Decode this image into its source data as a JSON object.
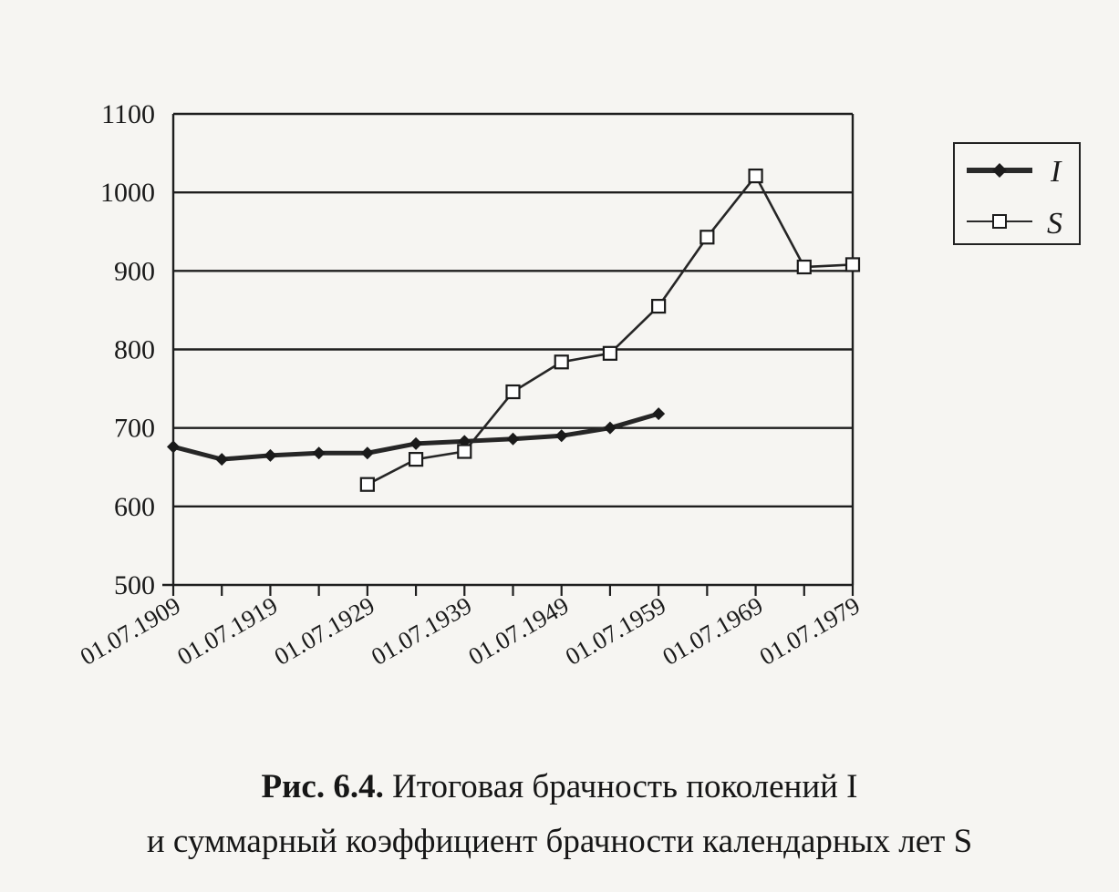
{
  "chart_data": {
    "type": "line",
    "title": "",
    "xlabel": "",
    "ylabel": "",
    "ylim": [
      500,
      1100
    ],
    "yticks": [
      "1100",
      "1000",
      "900",
      "800",
      "700",
      "600",
      "500"
    ],
    "xticks": [
      "01.07.1909",
      "01.07.1919",
      "01.07.1929",
      "01.07.1939",
      "01.07.1949",
      "01.07.1959",
      "01.07.1969",
      "01.07.1979"
    ],
    "grid": true,
    "legend_position": "right",
    "x": [
      1909,
      1914,
      1919,
      1924,
      1929,
      1934,
      1939,
      1944,
      1949,
      1954,
      1959,
      1964,
      1969,
      1974,
      1979
    ],
    "series": [
      {
        "name": "I",
        "marker": "diamond",
        "color": "#262626",
        "values": [
          676,
          660,
          665,
          668,
          668,
          680,
          683,
          686,
          690,
          700,
          718,
          null,
          null,
          null,
          null
        ]
      },
      {
        "name": "S",
        "marker": "square",
        "color": "#262626",
        "values": [
          null,
          null,
          null,
          null,
          628,
          660,
          670,
          746,
          784,
          795,
          855,
          943,
          1021,
          905,
          908
        ]
      }
    ]
  },
  "caption": {
    "figure_label": "Рис. 6.4.",
    "line1_text": "Итоговая брачность поколений I",
    "line2_text": "и суммарный коэффициент брачности календарных лет S"
  }
}
